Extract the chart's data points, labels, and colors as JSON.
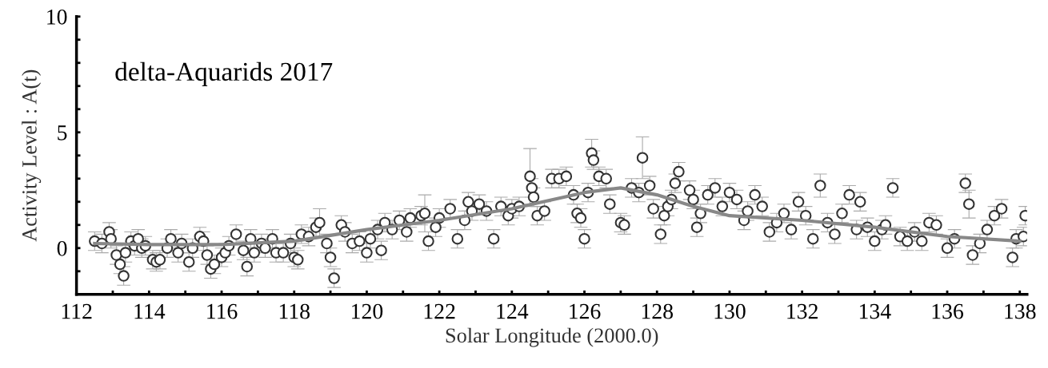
{
  "chart_data": {
    "type": "scatter",
    "xlabel": "Solar Longitude (2000.0)",
    "ylabel": "Activity Level : A(t)",
    "annotations": [
      "delta-Aquarids 2017"
    ],
    "xlim": [
      112,
      138.2
    ],
    "ylim": [
      -2,
      10
    ],
    "xticks": [
      112,
      {
        "value": 113,
        "label": null
      },
      114,
      {
        "value": 115,
        "label": null
      },
      116,
      {
        "value": 117,
        "label": null
      },
      118,
      {
        "value": 119,
        "label": null
      },
      120,
      {
        "value": 121,
        "label": null
      },
      122,
      {
        "value": 123,
        "label": null
      },
      124,
      {
        "value": 125,
        "label": null
      },
      126,
      {
        "value": 127,
        "label": null
      },
      128,
      {
        "value": 129,
        "label": null
      },
      130,
      {
        "value": 131,
        "label": null
      },
      132,
      {
        "value": 133,
        "label": null
      },
      134,
      {
        "value": 135,
        "label": null
      },
      136,
      {
        "value": 137,
        "label": null
      },
      138
    ],
    "yticks": [
      {
        "value": -1,
        "label": null
      },
      0,
      {
        "value": 1,
        "label": null
      },
      {
        "value": 2,
        "label": null
      },
      {
        "value": 3,
        "label": null
      },
      {
        "value": 4,
        "label": null
      },
      5,
      {
        "value": 6,
        "label": null
      },
      {
        "value": 7,
        "label": null
      },
      {
        "value": 8,
        "label": null
      },
      {
        "value": 9,
        "label": null
      },
      10
    ],
    "grid": false,
    "legend": false,
    "series": [
      {
        "color": "#333333",
        "marker": "circle",
        "x": [
          112.5,
          112.7,
          112.9,
          112.95,
          113.1,
          113.2,
          113.3,
          113.35,
          113.5,
          113.6,
          113.7,
          113.8,
          113.9,
          114.1,
          114.2,
          114.3,
          114.5,
          114.6,
          114.8,
          114.9,
          115.1,
          115.2,
          115.4,
          115.5,
          115.6,
          115.7,
          115.8,
          116.0,
          116.1,
          116.2,
          116.4,
          116.6,
          116.7,
          116.8,
          116.9,
          117.1,
          117.2,
          117.4,
          117.5,
          117.7,
          117.9,
          118.0,
          118.1,
          118.2,
          118.4,
          118.6,
          118.7,
          118.9,
          119.0,
          119.1,
          119.3,
          119.4,
          119.6,
          119.8,
          120.0,
          120.1,
          120.3,
          120.4,
          120.5,
          120.7,
          120.9,
          121.1,
          121.2,
          121.5,
          121.6,
          121.7,
          121.9,
          122.0,
          122.3,
          122.5,
          122.7,
          122.8,
          122.9,
          123.1,
          123.3,
          123.5,
          123.7,
          123.9,
          124.0,
          124.2,
          124.5,
          124.55,
          124.6,
          124.7,
          124.9,
          125.1,
          125.3,
          125.5,
          125.7,
          125.8,
          125.9,
          126.0,
          126.1,
          126.2,
          126.25,
          126.4,
          126.6,
          126.7,
          127.0,
          127.1,
          127.3,
          127.5,
          127.6,
          127.8,
          127.9,
          128.1,
          128.2,
          128.3,
          128.4,
          128.5,
          128.6,
          128.9,
          129.0,
          129.1,
          129.2,
          129.4,
          129.6,
          129.8,
          130.0,
          130.2,
          130.4,
          130.5,
          130.7,
          130.9,
          131.1,
          131.3,
          131.5,
          131.7,
          131.9,
          132.1,
          132.3,
          132.5,
          132.7,
          132.9,
          133.1,
          133.3,
          133.5,
          133.6,
          133.8,
          134.0,
          134.2,
          134.3,
          134.5,
          134.7,
          134.9,
          135.1,
          135.3,
          135.5,
          135.7,
          136.0,
          136.2,
          136.5,
          136.6,
          136.7,
          136.9,
          137.1,
          137.3,
          137.5,
          137.8,
          137.9,
          138.1,
          138.15
        ],
        "values": [
          0.3,
          0.2,
          0.7,
          0.4,
          -0.3,
          -0.7,
          -1.2,
          -0.2,
          0.3,
          0.1,
          0.4,
          0.0,
          0.1,
          -0.5,
          -0.6,
          -0.5,
          0.0,
          0.4,
          -0.2,
          0.2,
          -0.6,
          0.0,
          0.5,
          0.3,
          -0.3,
          -0.9,
          -0.7,
          -0.4,
          -0.2,
          0.1,
          0.6,
          -0.1,
          -0.8,
          0.4,
          -0.2,
          0.2,
          0.0,
          0.4,
          -0.2,
          -0.2,
          0.2,
          -0.4,
          -0.5,
          0.6,
          0.5,
          0.9,
          1.1,
          0.2,
          -0.4,
          -1.3,
          1.0,
          0.7,
          0.2,
          0.3,
          -0.2,
          0.4,
          0.8,
          -0.1,
          1.1,
          0.8,
          1.2,
          0.7,
          1.3,
          1.4,
          1.5,
          0.3,
          0.9,
          1.3,
          1.7,
          0.4,
          1.2,
          2.0,
          1.6,
          1.9,
          1.6,
          0.4,
          1.8,
          1.4,
          1.7,
          1.8,
          3.1,
          2.6,
          2.2,
          1.4,
          1.6,
          3.0,
          3.0,
          3.1,
          2.3,
          1.5,
          1.3,
          0.4,
          2.4,
          4.1,
          3.8,
          3.1,
          3.0,
          1.9,
          1.1,
          1.0,
          2.6,
          2.4,
          3.9,
          2.7,
          1.7,
          0.6,
          1.4,
          1.8,
          2.1,
          2.8,
          3.3,
          2.5,
          2.1,
          0.9,
          1.5,
          2.3,
          2.6,
          1.8,
          2.4,
          2.1,
          1.2,
          1.6,
          2.3,
          1.8,
          0.7,
          1.1,
          1.5,
          0.8,
          2.0,
          1.4,
          0.4,
          2.7,
          1.1,
          0.6,
          1.5,
          2.3,
          0.8,
          2.0,
          0.9,
          0.3,
          0.8,
          1.0,
          2.6,
          0.5,
          0.3,
          0.7,
          0.3,
          1.1,
          1.0,
          0.0,
          0.4,
          2.8,
          1.9,
          -0.3,
          0.2,
          0.8,
          1.4,
          1.7,
          -0.4,
          0.4,
          0.5,
          1.4
        ],
        "errors": [
          0.4,
          0.4,
          0.4,
          0.4,
          0.4,
          0.4,
          0.4,
          0.4,
          0.4,
          0.4,
          0.4,
          0.4,
          0.4,
          0.4,
          0.4,
          0.4,
          0.4,
          0.4,
          0.4,
          0.4,
          0.4,
          0.4,
          0.4,
          0.4,
          0.4,
          0.4,
          0.4,
          0.4,
          0.4,
          0.4,
          0.4,
          0.4,
          0.4,
          0.4,
          0.4,
          0.4,
          0.4,
          0.4,
          0.4,
          0.4,
          0.4,
          0.4,
          0.4,
          0.4,
          0.4,
          0.4,
          0.6,
          0.4,
          0.4,
          0.4,
          0.4,
          0.4,
          0.4,
          0.4,
          0.4,
          0.4,
          0.4,
          0.4,
          0.4,
          0.4,
          0.4,
          0.4,
          0.4,
          0.4,
          0.8,
          0.4,
          0.4,
          0.4,
          0.4,
          0.4,
          0.4,
          0.4,
          0.4,
          0.4,
          0.4,
          0.4,
          0.4,
          0.4,
          0.4,
          0.4,
          1.2,
          0.4,
          0.4,
          0.4,
          0.4,
          0.4,
          0.4,
          0.4,
          0.4,
          0.4,
          0.4,
          0.4,
          0.4,
          0.6,
          0.4,
          0.4,
          0.4,
          0.4,
          0.4,
          0.4,
          0.4,
          0.4,
          0.9,
          0.4,
          0.4,
          0.4,
          0.4,
          0.4,
          0.4,
          0.4,
          0.4,
          0.4,
          0.4,
          0.4,
          0.4,
          0.4,
          0.4,
          0.4,
          0.4,
          0.4,
          0.4,
          0.4,
          0.4,
          0.4,
          0.4,
          0.4,
          0.4,
          0.4,
          0.4,
          0.4,
          0.4,
          0.5,
          0.4,
          0.4,
          0.4,
          0.4,
          0.4,
          0.4,
          0.4,
          0.4,
          0.4,
          0.4,
          0.4,
          0.4,
          0.4,
          0.4,
          0.4,
          0.4,
          0.4,
          0.4,
          0.4,
          0.4,
          0.6,
          0.4,
          0.4,
          0.4,
          0.4,
          0.4,
          0.4,
          0.4,
          0.4,
          0.4
        ]
      },
      {
        "type": "line",
        "color": "#888888",
        "marker": "none",
        "line_style": "solid",
        "x": [
          112.5,
          114,
          116,
          118,
          120,
          122,
          124,
          126,
          127,
          128,
          129,
          130,
          132,
          134,
          136,
          138
        ],
        "values": [
          0.2,
          0.15,
          0.15,
          0.3,
          0.8,
          1.2,
          1.7,
          2.4,
          2.6,
          2.3,
          1.8,
          1.4,
          1.2,
          0.9,
          0.5,
          0.3
        ]
      }
    ]
  }
}
